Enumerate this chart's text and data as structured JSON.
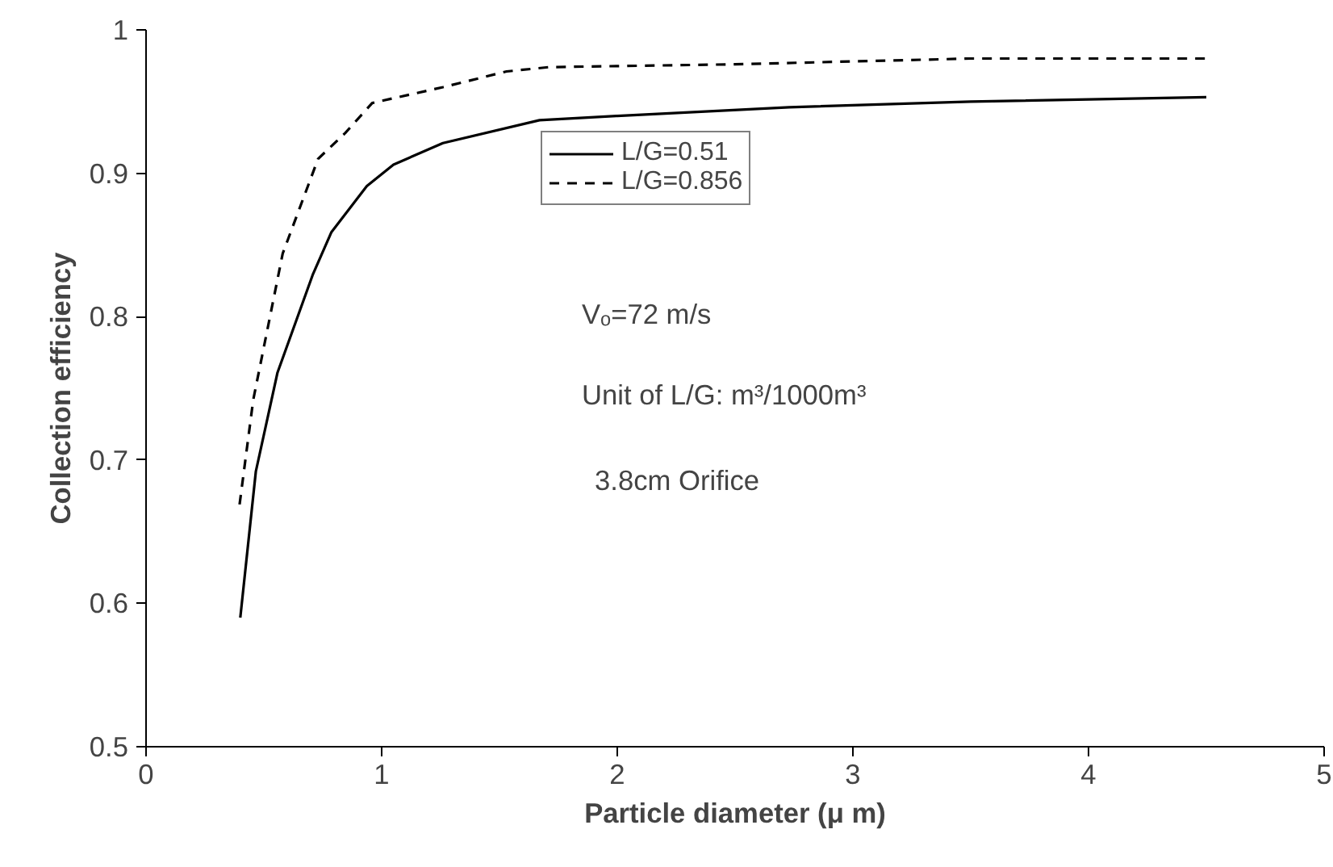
{
  "chart_data": {
    "type": "line",
    "xlabel": "Particle diameter (μ m)",
    "ylabel": "Collection efficiency",
    "xlim": [
      0,
      5
    ],
    "ylim": [
      0.5,
      1
    ],
    "xticks": [
      0,
      1,
      2,
      3,
      4,
      5
    ],
    "yticks": [
      0.5,
      0.6,
      0.7,
      0.8,
      0.9,
      1
    ],
    "grid": false,
    "legend": "top",
    "marker": "none",
    "series": [
      {
        "name": "L/G=0.51",
        "color": "#000000",
        "line_style": "solid",
        "x": [
          0.4,
          0.466,
          0.558,
          0.707,
          0.787,
          0.937,
          1.05,
          1.26,
          1.67,
          2.0,
          2.73,
          3.5,
          4.5
        ],
        "values": [
          0.59,
          0.692,
          0.761,
          0.829,
          0.859,
          0.891,
          0.906,
          0.921,
          0.937,
          0.94,
          0.946,
          0.95,
          0.953
        ]
      },
      {
        "name": "L/G=0.856",
        "color": "#000000",
        "line_style": "dashed",
        "x": [
          0.397,
          0.455,
          0.58,
          0.73,
          0.845,
          0.96,
          1.26,
          1.53,
          1.71,
          2.5,
          3.5,
          4.5
        ],
        "values": [
          0.669,
          0.742,
          0.844,
          0.91,
          0.928,
          0.949,
          0.96,
          0.971,
          0.974,
          0.976,
          0.98,
          0.98
        ]
      }
    ],
    "annotations": [
      "Vₒ=72 m/s",
      "Unit of L/G: m³/1000m³",
      "3.8cm Orifice"
    ]
  }
}
